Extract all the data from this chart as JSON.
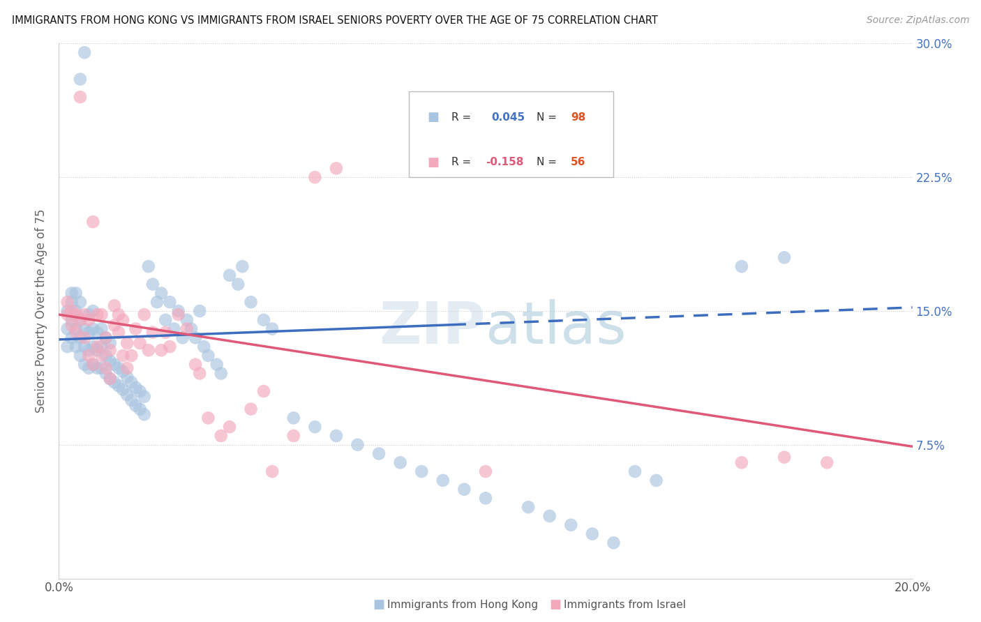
{
  "title": "IMMIGRANTS FROM HONG KONG VS IMMIGRANTS FROM ISRAEL SENIORS POVERTY OVER THE AGE OF 75 CORRELATION CHART",
  "source": "Source: ZipAtlas.com",
  "ylabel": "Seniors Poverty Over the Age of 75",
  "xlim": [
    0.0,
    0.2
  ],
  "ylim": [
    0.0,
    0.3
  ],
  "xtick_positions": [
    0.0,
    0.05,
    0.1,
    0.15,
    0.2
  ],
  "xticklabels": [
    "0.0%",
    "",
    "",
    "",
    "20.0%"
  ],
  "ytick_positions": [
    0.075,
    0.15,
    0.225,
    0.3
  ],
  "ytick_labels": [
    "7.5%",
    "15.0%",
    "22.5%",
    "30.0%"
  ],
  "hk_R": 0.045,
  "hk_N": 98,
  "il_R": -0.158,
  "il_N": 56,
  "legend_label_hk": "Immigrants from Hong Kong",
  "legend_label_il": "Immigrants from Israel",
  "hk_color": "#a8c4e0",
  "il_color": "#f4a8bc",
  "hk_line_color": "#3d6dbf",
  "il_line_color": "#e05878",
  "hk_r_text_color": "#4472c4",
  "il_r_text_color": "#e05878",
  "n_text_color": "#e05020",
  "hk_trend_x0": 0.0,
  "hk_trend_x1": 0.2,
  "hk_trend_y0": 0.134,
  "hk_trend_y1": 0.152,
  "il_trend_x0": 0.0,
  "il_trend_x1": 0.2,
  "il_trend_y0": 0.148,
  "il_trend_y1": 0.074,
  "hk_x": [
    0.002,
    0.002,
    0.002,
    0.003,
    0.003,
    0.003,
    0.003,
    0.004,
    0.004,
    0.004,
    0.004,
    0.005,
    0.005,
    0.005,
    0.005,
    0.005,
    0.006,
    0.006,
    0.006,
    0.006,
    0.007,
    0.007,
    0.007,
    0.007,
    0.008,
    0.008,
    0.008,
    0.008,
    0.009,
    0.009,
    0.009,
    0.01,
    0.01,
    0.01,
    0.011,
    0.011,
    0.011,
    0.012,
    0.012,
    0.012,
    0.013,
    0.013,
    0.014,
    0.014,
    0.015,
    0.015,
    0.016,
    0.016,
    0.017,
    0.017,
    0.018,
    0.018,
    0.019,
    0.019,
    0.02,
    0.02,
    0.021,
    0.022,
    0.023,
    0.024,
    0.025,
    0.026,
    0.027,
    0.028,
    0.029,
    0.03,
    0.031,
    0.032,
    0.033,
    0.034,
    0.035,
    0.037,
    0.038,
    0.04,
    0.042,
    0.043,
    0.045,
    0.048,
    0.05,
    0.055,
    0.06,
    0.065,
    0.07,
    0.075,
    0.08,
    0.085,
    0.09,
    0.095,
    0.1,
    0.11,
    0.115,
    0.12,
    0.125,
    0.13,
    0.135,
    0.14,
    0.16,
    0.17
  ],
  "hk_y": [
    0.13,
    0.14,
    0.15,
    0.135,
    0.145,
    0.155,
    0.16,
    0.13,
    0.14,
    0.15,
    0.16,
    0.125,
    0.135,
    0.145,
    0.155,
    0.28,
    0.12,
    0.13,
    0.14,
    0.295,
    0.118,
    0.128,
    0.138,
    0.148,
    0.12,
    0.13,
    0.14,
    0.15,
    0.118,
    0.128,
    0.138,
    0.118,
    0.13,
    0.14,
    0.115,
    0.125,
    0.135,
    0.112,
    0.122,
    0.132,
    0.11,
    0.12,
    0.108,
    0.118,
    0.106,
    0.116,
    0.103,
    0.113,
    0.1,
    0.11,
    0.097,
    0.107,
    0.095,
    0.105,
    0.092,
    0.102,
    0.175,
    0.165,
    0.155,
    0.16,
    0.145,
    0.155,
    0.14,
    0.15,
    0.135,
    0.145,
    0.14,
    0.135,
    0.15,
    0.13,
    0.125,
    0.12,
    0.115,
    0.17,
    0.165,
    0.175,
    0.155,
    0.145,
    0.14,
    0.09,
    0.085,
    0.08,
    0.075,
    0.07,
    0.065,
    0.06,
    0.055,
    0.05,
    0.045,
    0.04,
    0.035,
    0.03,
    0.025,
    0.02,
    0.06,
    0.055,
    0.175,
    0.18
  ],
  "il_x": [
    0.002,
    0.002,
    0.003,
    0.003,
    0.004,
    0.004,
    0.005,
    0.005,
    0.006,
    0.006,
    0.007,
    0.007,
    0.008,
    0.008,
    0.009,
    0.009,
    0.01,
    0.01,
    0.011,
    0.011,
    0.012,
    0.012,
    0.013,
    0.013,
    0.014,
    0.014,
    0.015,
    0.015,
    0.016,
    0.016,
    0.017,
    0.018,
    0.019,
    0.02,
    0.021,
    0.022,
    0.024,
    0.025,
    0.026,
    0.028,
    0.03,
    0.032,
    0.033,
    0.035,
    0.038,
    0.04,
    0.045,
    0.048,
    0.05,
    0.055,
    0.06,
    0.065,
    0.1,
    0.16,
    0.17,
    0.18
  ],
  "il_y": [
    0.148,
    0.155,
    0.142,
    0.15,
    0.138,
    0.148,
    0.27,
    0.145,
    0.135,
    0.148,
    0.125,
    0.145,
    0.12,
    0.2,
    0.13,
    0.148,
    0.125,
    0.148,
    0.118,
    0.135,
    0.112,
    0.128,
    0.142,
    0.153,
    0.138,
    0.148,
    0.125,
    0.145,
    0.118,
    0.132,
    0.125,
    0.14,
    0.132,
    0.148,
    0.128,
    0.138,
    0.128,
    0.138,
    0.13,
    0.148,
    0.14,
    0.12,
    0.115,
    0.09,
    0.08,
    0.085,
    0.095,
    0.105,
    0.06,
    0.08,
    0.225,
    0.23,
    0.06,
    0.065,
    0.068,
    0.065
  ]
}
